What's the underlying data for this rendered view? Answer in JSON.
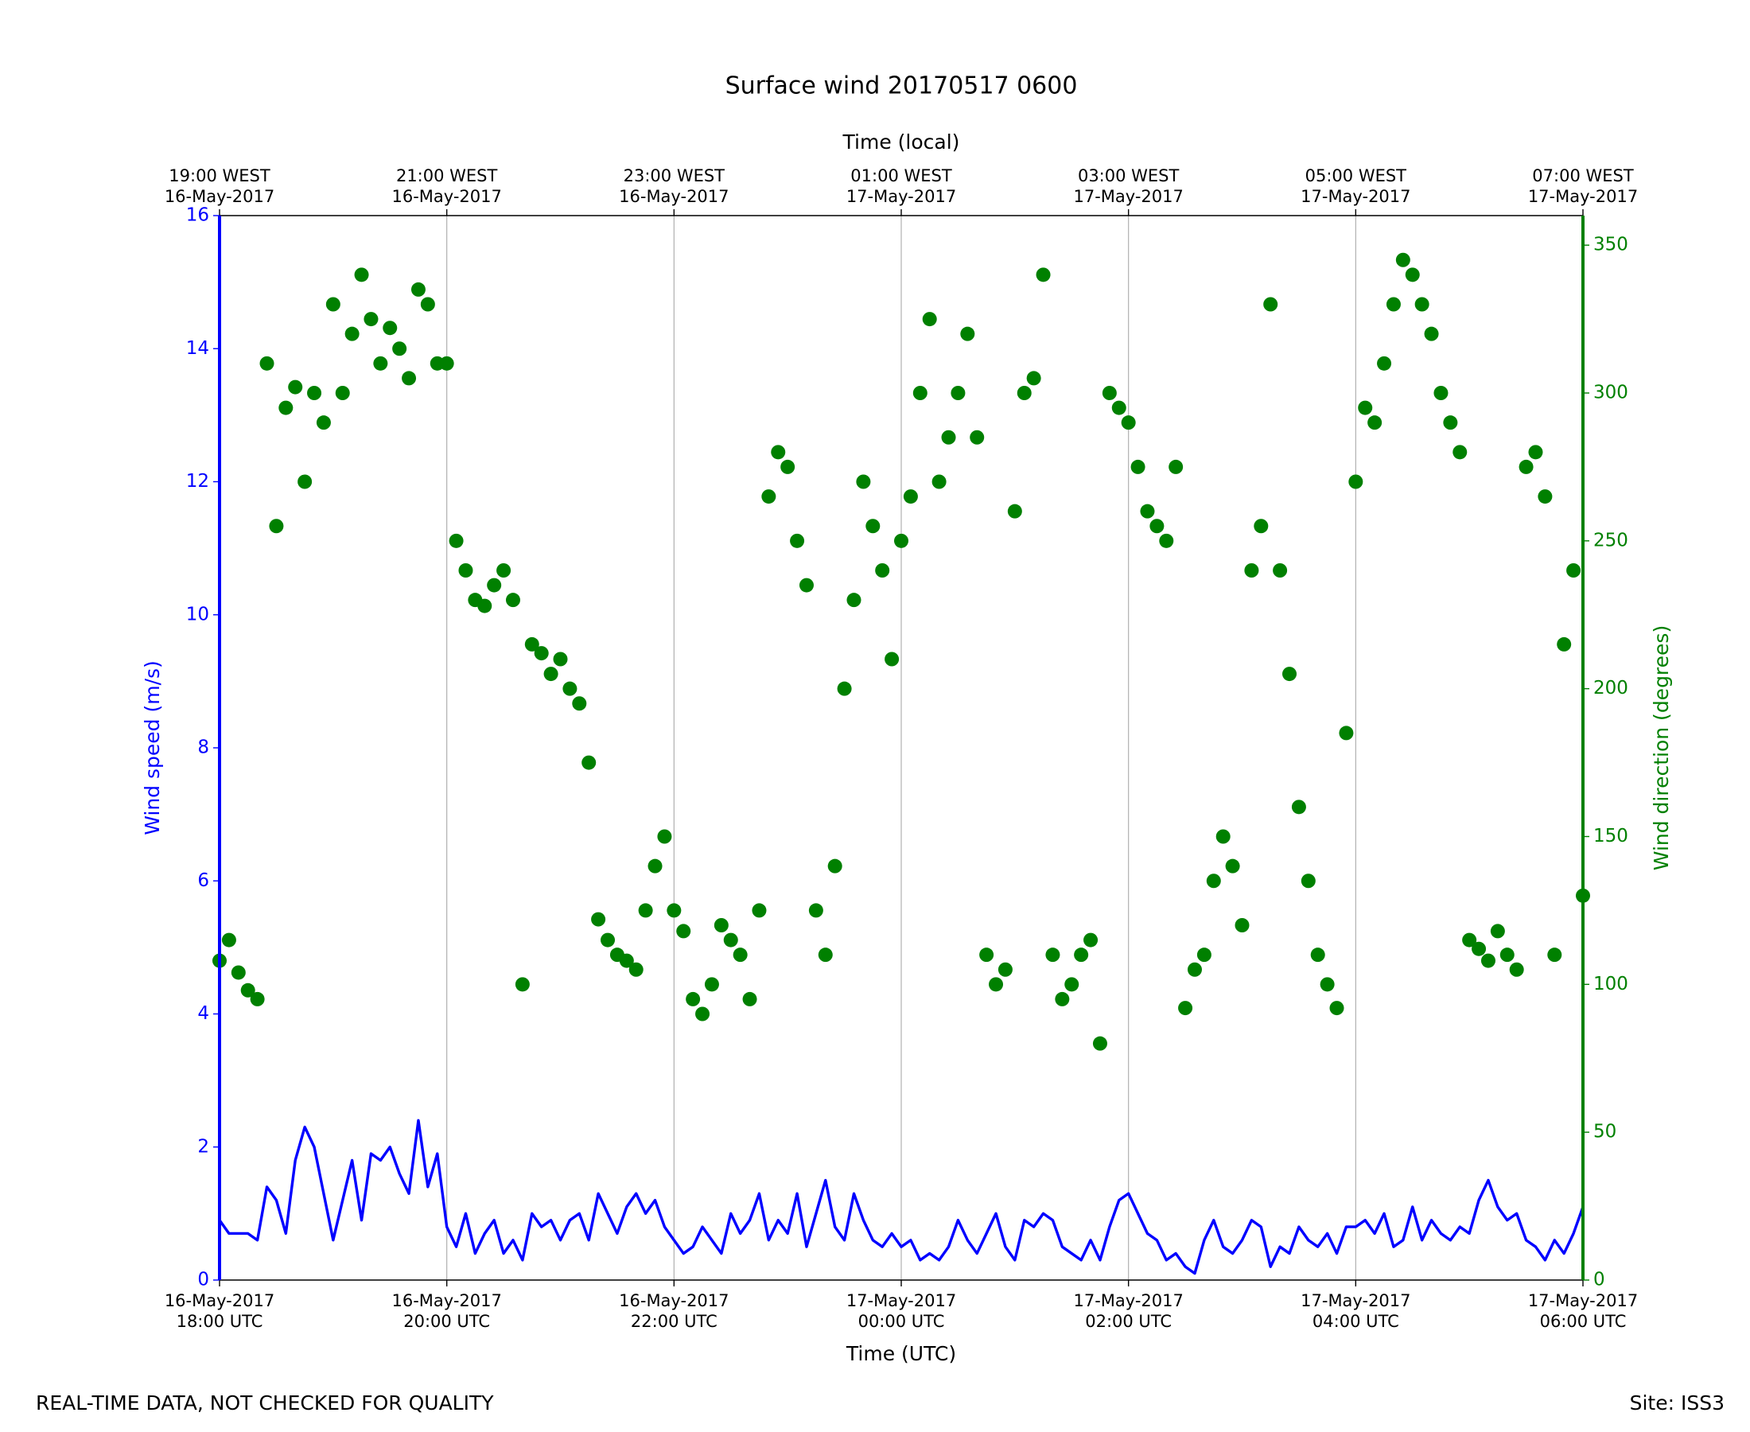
{
  "chart_data": {
    "type": "combo",
    "title": "Surface wind 20170517 0600",
    "xlabel": "Time (UTC)",
    "x2label": "Time (local)",
    "ylabel": "Wind speed (m/s)",
    "y2label": "Wind direction (degrees)",
    "footer_left": "REAL-TIME DATA, NOT CHECKED FOR QUALITY",
    "footer_right": "Site: ISS3",
    "grid": true,
    "xlim": [
      "2017-05-16T18:00Z",
      "2017-05-17T06:00Z"
    ],
    "xticks": [
      {
        "value": "2017-05-16T18:00Z",
        "label": "16-May-2017\n18:00 UTC"
      },
      {
        "value": "2017-05-16T20:00Z",
        "label": "16-May-2017\n20:00 UTC"
      },
      {
        "value": "2017-05-16T22:00Z",
        "label": "16-May-2017\n22:00 UTC"
      },
      {
        "value": "2017-05-17T00:00Z",
        "label": "17-May-2017\n00:00 UTC"
      },
      {
        "value": "2017-05-17T02:00Z",
        "label": "17-May-2017\n02:00 UTC"
      },
      {
        "value": "2017-05-17T04:00Z",
        "label": "17-May-2017\n04:00 UTC"
      },
      {
        "value": "2017-05-17T06:00Z",
        "label": "17-May-2017\n06:00 UTC"
      }
    ],
    "x2ticks": [
      {
        "value": "2017-05-16T19:00+01:00",
        "label": "19:00 WEST\n16-May-2017"
      },
      {
        "value": "2017-05-16T21:00+01:00",
        "label": "21:00 WEST\n16-May-2017"
      },
      {
        "value": "2017-05-16T23:00+01:00",
        "label": "23:00 WEST\n16-May-2017"
      },
      {
        "value": "2017-05-17T01:00+01:00",
        "label": "01:00 WEST\n17-May-2017"
      },
      {
        "value": "2017-05-17T03:00+01:00",
        "label": "03:00 WEST\n17-May-2017"
      },
      {
        "value": "2017-05-17T05:00+01:00",
        "label": "05:00 WEST\n17-May-2017"
      },
      {
        "value": "2017-05-17T07:00+01:00",
        "label": "07:00 WEST\n17-May-2017"
      }
    ],
    "ylim": [
      0,
      16
    ],
    "yticks": [
      0,
      2,
      4,
      6,
      8,
      10,
      12,
      14,
      16
    ],
    "y2lim": [
      0,
      360
    ],
    "y2ticks": [
      0,
      50,
      100,
      150,
      200,
      250,
      300,
      350
    ],
    "x": [
      "2017-05-16T18:00Z",
      "2017-05-16T18:05Z",
      "2017-05-16T18:10Z",
      "2017-05-16T18:15Z",
      "2017-05-16T18:20Z",
      "2017-05-16T18:25Z",
      "2017-05-16T18:30Z",
      "2017-05-16T18:35Z",
      "2017-05-16T18:40Z",
      "2017-05-16T18:45Z",
      "2017-05-16T18:50Z",
      "2017-05-16T18:55Z",
      "2017-05-16T19:00Z",
      "2017-05-16T19:05Z",
      "2017-05-16T19:10Z",
      "2017-05-16T19:15Z",
      "2017-05-16T19:20Z",
      "2017-05-16T19:25Z",
      "2017-05-16T19:30Z",
      "2017-05-16T19:35Z",
      "2017-05-16T19:40Z",
      "2017-05-16T19:45Z",
      "2017-05-16T19:50Z",
      "2017-05-16T19:55Z",
      "2017-05-16T20:00Z",
      "2017-05-16T20:05Z",
      "2017-05-16T20:10Z",
      "2017-05-16T20:15Z",
      "2017-05-16T20:20Z",
      "2017-05-16T20:25Z",
      "2017-05-16T20:30Z",
      "2017-05-16T20:35Z",
      "2017-05-16T20:40Z",
      "2017-05-16T20:45Z",
      "2017-05-16T20:50Z",
      "2017-05-16T20:55Z",
      "2017-05-16T21:00Z",
      "2017-05-16T21:05Z",
      "2017-05-16T21:10Z",
      "2017-05-16T21:15Z",
      "2017-05-16T21:20Z",
      "2017-05-16T21:25Z",
      "2017-05-16T21:30Z",
      "2017-05-16T21:35Z",
      "2017-05-16T21:40Z",
      "2017-05-16T21:45Z",
      "2017-05-16T21:50Z",
      "2017-05-16T21:55Z",
      "2017-05-16T22:00Z",
      "2017-05-16T22:05Z",
      "2017-05-16T22:10Z",
      "2017-05-16T22:15Z",
      "2017-05-16T22:20Z",
      "2017-05-16T22:25Z",
      "2017-05-16T22:30Z",
      "2017-05-16T22:35Z",
      "2017-05-16T22:40Z",
      "2017-05-16T22:45Z",
      "2017-05-16T22:50Z",
      "2017-05-16T22:55Z",
      "2017-05-16T23:00Z",
      "2017-05-16T23:05Z",
      "2017-05-16T23:10Z",
      "2017-05-16T23:15Z",
      "2017-05-16T23:20Z",
      "2017-05-16T23:25Z",
      "2017-05-16T23:30Z",
      "2017-05-16T23:35Z",
      "2017-05-16T23:40Z",
      "2017-05-16T23:45Z",
      "2017-05-16T23:50Z",
      "2017-05-16T23:55Z",
      "2017-05-17T00:00Z",
      "2017-05-17T00:05Z",
      "2017-05-17T00:10Z",
      "2017-05-17T00:15Z",
      "2017-05-17T00:20Z",
      "2017-05-17T00:25Z",
      "2017-05-17T00:30Z",
      "2017-05-17T00:35Z",
      "2017-05-17T00:40Z",
      "2017-05-17T00:45Z",
      "2017-05-17T00:50Z",
      "2017-05-17T00:55Z",
      "2017-05-17T01:00Z",
      "2017-05-17T01:05Z",
      "2017-05-17T01:10Z",
      "2017-05-17T01:15Z",
      "2017-05-17T01:20Z",
      "2017-05-17T01:25Z",
      "2017-05-17T01:30Z",
      "2017-05-17T01:35Z",
      "2017-05-17T01:40Z",
      "2017-05-17T01:45Z",
      "2017-05-17T01:50Z",
      "2017-05-17T01:55Z",
      "2017-05-17T02:00Z",
      "2017-05-17T02:05Z",
      "2017-05-17T02:10Z",
      "2017-05-17T02:15Z",
      "2017-05-17T02:20Z",
      "2017-05-17T02:25Z",
      "2017-05-17T02:30Z",
      "2017-05-17T02:35Z",
      "2017-05-17T02:40Z",
      "2017-05-17T02:45Z",
      "2017-05-17T02:50Z",
      "2017-05-17T02:55Z",
      "2017-05-17T03:00Z",
      "2017-05-17T03:05Z",
      "2017-05-17T03:10Z",
      "2017-05-17T03:15Z",
      "2017-05-17T03:20Z",
      "2017-05-17T03:25Z",
      "2017-05-17T03:30Z",
      "2017-05-17T03:35Z",
      "2017-05-17T03:40Z",
      "2017-05-17T03:45Z",
      "2017-05-17T03:50Z",
      "2017-05-17T03:55Z",
      "2017-05-17T04:00Z",
      "2017-05-17T04:05Z",
      "2017-05-17T04:10Z",
      "2017-05-17T04:15Z",
      "2017-05-17T04:20Z",
      "2017-05-17T04:25Z",
      "2017-05-17T04:30Z",
      "2017-05-17T04:35Z",
      "2017-05-17T04:40Z",
      "2017-05-17T04:45Z",
      "2017-05-17T04:50Z",
      "2017-05-17T04:55Z",
      "2017-05-17T05:00Z",
      "2017-05-17T05:05Z",
      "2017-05-17T05:10Z",
      "2017-05-17T05:15Z",
      "2017-05-17T05:20Z",
      "2017-05-17T05:25Z",
      "2017-05-17T05:30Z",
      "2017-05-17T05:35Z",
      "2017-05-17T05:40Z",
      "2017-05-17T05:45Z",
      "2017-05-17T05:50Z",
      "2017-05-17T05:55Z",
      "2017-05-17T06:00Z"
    ],
    "series": [
      {
        "type": "line",
        "axis": "y",
        "color": "#0000ff",
        "values": [
          0.9,
          0.7,
          0.7,
          0.7,
          0.6,
          1.4,
          1.2,
          0.7,
          1.8,
          2.3,
          2.0,
          1.3,
          0.6,
          1.2,
          1.8,
          0.9,
          1.9,
          1.8,
          2.0,
          1.6,
          1.3,
          2.4,
          1.4,
          1.9,
          0.8,
          0.5,
          1.0,
          0.4,
          0.7,
          0.9,
          0.4,
          0.6,
          0.3,
          1.0,
          0.8,
          0.9,
          0.6,
          0.9,
          1.0,
          0.6,
          1.3,
          1.0,
          0.7,
          1.1,
          1.3,
          1.0,
          1.2,
          0.8,
          0.6,
          0.4,
          0.5,
          0.8,
          0.6,
          0.4,
          1.0,
          0.7,
          0.9,
          1.3,
          0.6,
          0.9,
          0.7,
          1.3,
          0.5,
          1.0,
          1.5,
          0.8,
          0.6,
          1.3,
          0.9,
          0.6,
          0.5,
          0.7,
          0.5,
          0.6,
          0.3,
          0.4,
          0.3,
          0.5,
          0.9,
          0.6,
          0.4,
          0.7,
          1.0,
          0.5,
          0.3,
          0.9,
          0.8,
          1.0,
          0.9,
          0.5,
          0.4,
          0.3,
          0.6,
          0.3,
          0.8,
          1.2,
          1.3,
          1.0,
          0.7,
          0.6,
          0.3,
          0.4,
          0.2,
          0.1,
          0.6,
          0.9,
          0.5,
          0.4,
          0.6,
          0.9,
          0.8,
          0.2,
          0.5,
          0.4,
          0.8,
          0.6,
          0.5,
          0.7,
          0.4,
          0.8,
          0.8,
          0.9,
          0.7,
          1.0,
          0.5,
          0.6,
          1.1,
          0.6,
          0.9,
          0.7,
          0.6,
          0.8,
          0.7,
          1.2,
          1.5,
          1.1,
          0.9,
          1.0,
          0.6,
          0.5,
          0.3,
          0.6,
          0.4,
          0.7,
          1.1
        ]
      },
      {
        "type": "scatter",
        "axis": "y2",
        "color": "#008000",
        "values": [
          108,
          115,
          104,
          98,
          95,
          310,
          255,
          295,
          302,
          270,
          300,
          290,
          330,
          300,
          320,
          340,
          325,
          310,
          322,
          315,
          305,
          335,
          330,
          310,
          310,
          250,
          240,
          230,
          228,
          235,
          240,
          230,
          100,
          215,
          212,
          205,
          210,
          200,
          195,
          175,
          122,
          115,
          110,
          108,
          105,
          125,
          140,
          150,
          125,
          118,
          95,
          90,
          100,
          120,
          115,
          110,
          95,
          125,
          265,
          280,
          275,
          250,
          235,
          125,
          110,
          140,
          200,
          230,
          270,
          255,
          240,
          210,
          250,
          265,
          300,
          325,
          270,
          285,
          300,
          320,
          285,
          110,
          100,
          105,
          260,
          300,
          305,
          340,
          110,
          95,
          100,
          110,
          115,
          80,
          300,
          295,
          290,
          275,
          260,
          255,
          250,
          275,
          92,
          105,
          110,
          135,
          150,
          140,
          120,
          240,
          255,
          330,
          240,
          205,
          160,
          135,
          110,
          100,
          92,
          185,
          270,
          295,
          290,
          310,
          330,
          345,
          340,
          330,
          320,
          300,
          290,
          280,
          115,
          112,
          108,
          118,
          110,
          105,
          275,
          280,
          265,
          110,
          215,
          240,
          130
        ]
      }
    ]
  }
}
